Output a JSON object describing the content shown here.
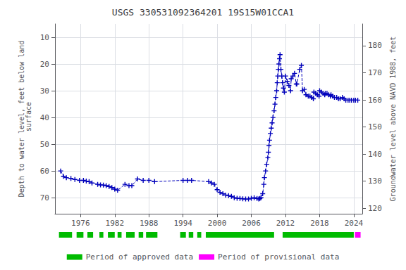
{
  "chart_data": {
    "type": "line",
    "title": "USGS 330531092364201 19S15W01CCA1",
    "ylabel": "Depth to water level, feet below land\n surface",
    "y2label": "Groundwater level above NAVD 1988, feet",
    "x": [
      1972.5,
      1973.0,
      1973.5,
      1974.3,
      1975.0,
      1975.8,
      1976.5,
      1977.0,
      1977.5,
      1978.0,
      1979.0,
      1979.5,
      1980.0,
      1980.5,
      1981.0,
      1981.5,
      1982.0,
      1982.5,
      1983.8,
      1984.5,
      1985.0,
      1986.0,
      1987.0,
      1988.0,
      1989.0,
      1994.0,
      1994.8,
      1995.5,
      1998.5,
      1999.0,
      1999.5,
      2000.0,
      2000.5,
      2001.0,
      2001.5,
      2002.0,
      2002.5,
      2003.0,
      2003.5,
      2004.0,
      2004.5,
      2005.0,
      2005.5,
      2006.0,
      2006.5,
      2007.0,
      2007.3,
      2007.5,
      2007.7,
      2008.0,
      2008.2,
      2008.3,
      2008.5,
      2008.7,
      2008.9,
      2009.0,
      2009.1,
      2009.2,
      2009.35,
      2009.5,
      2009.65,
      2009.8,
      2010.0,
      2010.15,
      2010.3,
      2010.45,
      2010.55,
      2010.65,
      2010.75,
      2010.85,
      2010.95,
      2011.05,
      2011.2,
      2011.35,
      2011.5,
      2011.65,
      2011.8,
      2012.0,
      2012.3,
      2012.6,
      2012.9,
      2013.0,
      2013.3,
      2013.6,
      2013.9,
      2014.0,
      2014.5,
      2014.8,
      2015.0,
      2015.3,
      2015.6,
      2016.0,
      2016.3,
      2016.6,
      2016.9,
      2017.0,
      2017.3,
      2017.6,
      2017.9,
      2018.0,
      2018.3,
      2018.6,
      2018.9,
      2019.0,
      2019.3,
      2019.6,
      2019.9,
      2020.0,
      2020.3,
      2020.6,
      2021.0,
      2021.3,
      2021.6,
      2022.0,
      2022.3,
      2022.6,
      2023.0,
      2023.3,
      2023.6,
      2024.0,
      2024.3,
      2024.7
    ],
    "values": [
      60.0,
      62.0,
      62.5,
      62.8,
      63.2,
      63.5,
      63.5,
      63.8,
      64.0,
      64.5,
      65.0,
      65.2,
      65.3,
      65.5,
      65.8,
      66.2,
      66.8,
      67.2,
      65.0,
      65.5,
      65.5,
      63.0,
      63.5,
      63.5,
      64.0,
      63.5,
      63.5,
      63.5,
      64.0,
      64.5,
      65.0,
      67.0,
      68.0,
      68.5,
      69.0,
      69.2,
      69.5,
      70.0,
      70.2,
      70.3,
      70.4,
      70.5,
      70.5,
      70.2,
      70.0,
      70.3,
      70.5,
      70.3,
      70.0,
      68.5,
      65.0,
      62.5,
      60.0,
      57.5,
      55.0,
      53.0,
      50.5,
      48.5,
      46.0,
      44.0,
      42.0,
      40.0,
      37.5,
      35.0,
      32.5,
      30.0,
      27.0,
      24.5,
      22.0,
      20.0,
      18.0,
      16.5,
      22.0,
      24.5,
      27.0,
      29.0,
      30.5,
      24.5,
      26.5,
      28.0,
      30.0,
      25.5,
      24.5,
      23.5,
      27.5,
      27.5,
      22.0,
      20.5,
      30.0,
      29.5,
      31.5,
      32.0,
      32.0,
      32.5,
      33.0,
      30.5,
      31.0,
      31.5,
      32.0,
      30.0,
      30.5,
      31.0,
      31.5,
      31.0,
      31.0,
      31.5,
      32.0,
      31.5,
      32.0,
      32.5,
      32.5,
      33.0,
      33.0,
      32.5,
      33.0,
      33.5,
      33.5,
      33.5,
      33.5,
      33.5,
      33.5,
      33.5
    ],
    "color": "#0000bb",
    "marker": "plus",
    "line_style": "dashed",
    "xlim": [
      1971.5,
      2025.5
    ],
    "xticks": [
      1976,
      1982,
      1988,
      1994,
      2000,
      2006,
      2012,
      2018,
      2024
    ],
    "ylim": [
      76,
      5
    ],
    "yticks": [
      10,
      20,
      30,
      40,
      50,
      60,
      70
    ],
    "y2lim": [
      118,
      188
    ],
    "y2ticks": [
      120,
      130,
      140,
      150,
      160,
      170,
      180
    ],
    "grid": true,
    "legend": "bottom",
    "segments": [
      {
        "name": "Period of approved data",
        "color": "#00bb00",
        "ranges": [
          [
            1972.2,
            1974.5
          ],
          [
            1975.3,
            1976.5
          ],
          [
            1977.2,
            1978.2
          ],
          [
            1979.3,
            1980.0
          ],
          [
            1980.8,
            1982.0
          ],
          [
            1982.5,
            1983.2
          ],
          [
            1984.0,
            1985.5
          ],
          [
            1986.2,
            1987.0
          ],
          [
            1987.5,
            1989.5
          ],
          [
            1993.5,
            1994.5
          ],
          [
            1995.0,
            1995.8
          ],
          [
            1996.5,
            1997.2
          ],
          [
            1998.0,
            2010.0
          ],
          [
            2011.5,
            2024.0
          ]
        ]
      },
      {
        "name": "Period of provisional data",
        "color": "#ff00ff",
        "ranges": [
          [
            2024.2,
            2025.2
          ]
        ]
      }
    ]
  }
}
